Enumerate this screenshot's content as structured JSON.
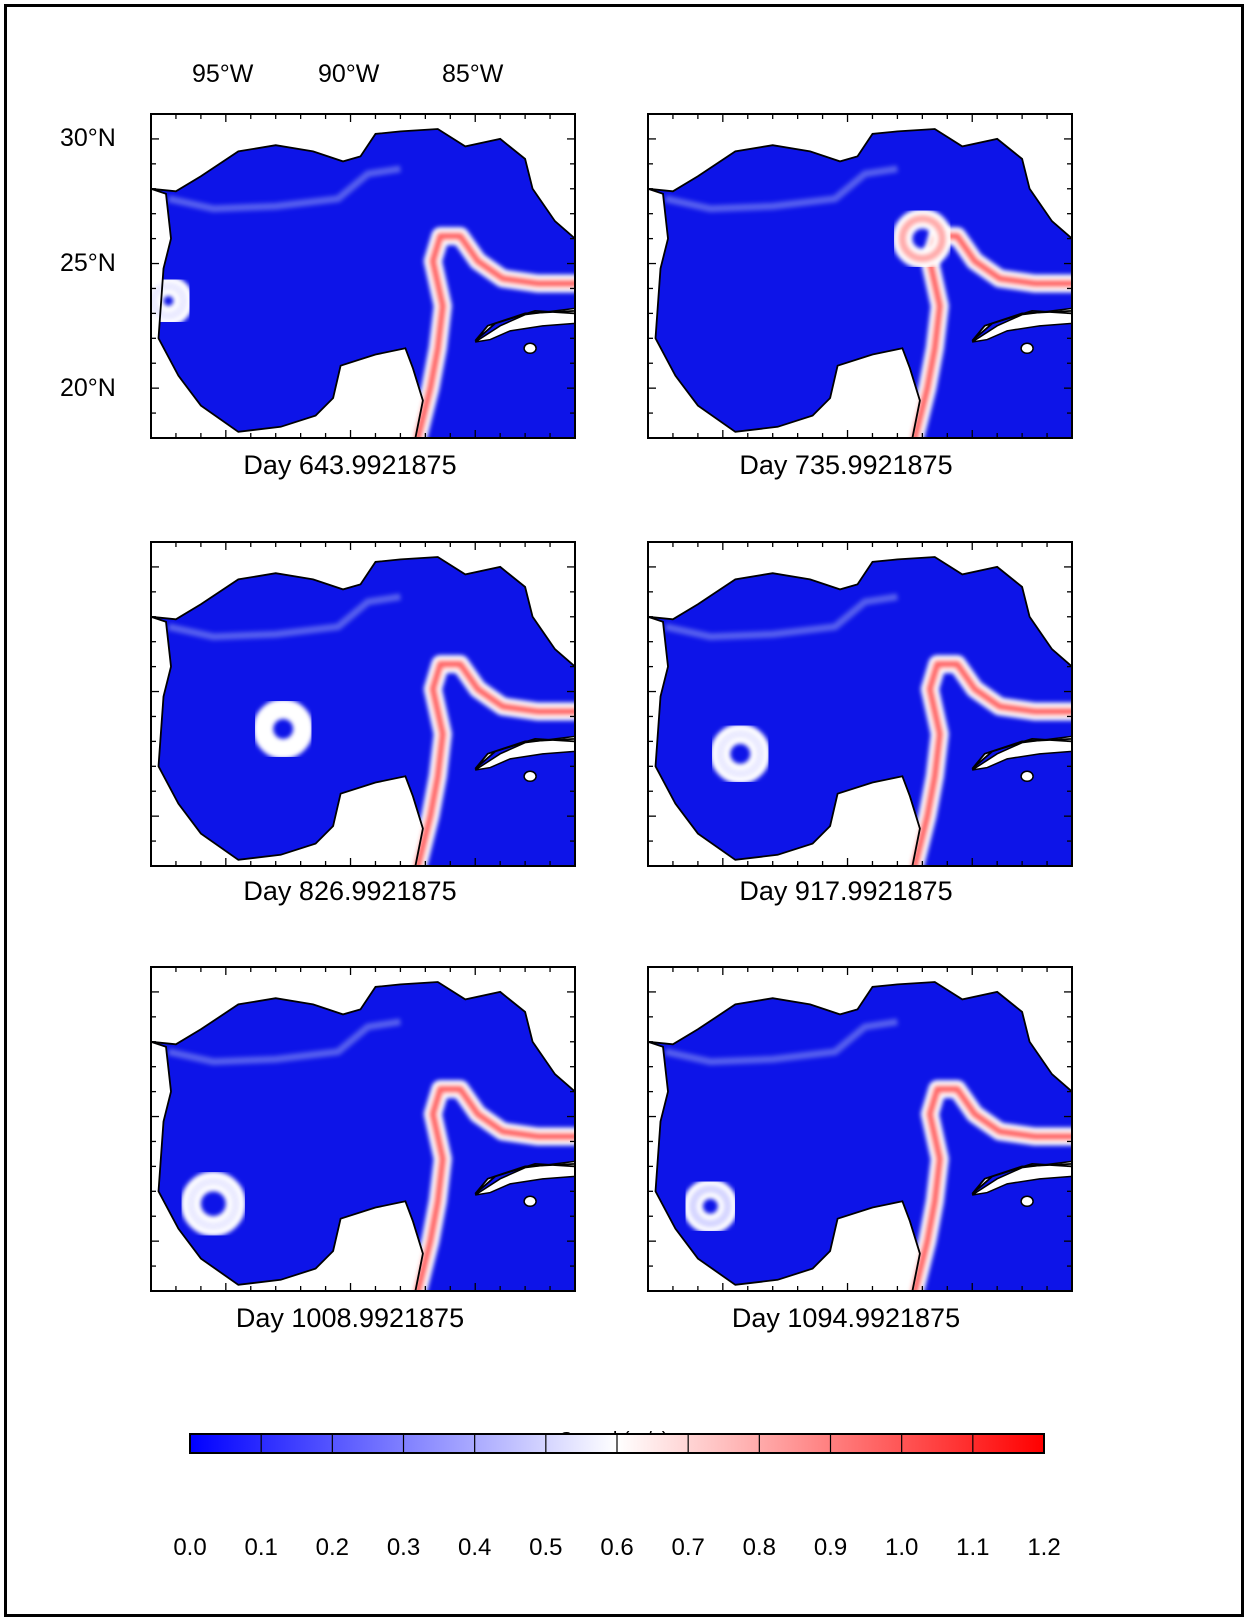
{
  "figure": {
    "lon_labels": [
      "95°W",
      "90°W",
      "85°W"
    ],
    "lat_labels": [
      "30°N",
      "25°N",
      "20°N"
    ]
  },
  "panels": [
    {
      "caption": "Day  643.9921875",
      "eddies": [
        {
          "lon": -97.3,
          "lat": 23.5,
          "r": 0.6,
          "speed": 0.55
        }
      ]
    },
    {
      "caption": "Day  735.9921875",
      "eddies": [
        {
          "lon": -87.0,
          "lat": 26.0,
          "r": 0.8,
          "speed": 0.8
        }
      ]
    },
    {
      "caption": "Day  826.9921875",
      "eddies": [
        {
          "lon": -92.7,
          "lat": 23.5,
          "r": 0.8,
          "speed": 0.6
        }
      ]
    },
    {
      "caption": "Day  917.9921875",
      "eddies": [
        {
          "lon": -94.3,
          "lat": 22.5,
          "r": 0.8,
          "speed": 0.55
        }
      ]
    },
    {
      "caption": "Day  1008.9921875",
      "eddies": [
        {
          "lon": -95.5,
          "lat": 21.5,
          "r": 0.9,
          "speed": 0.55
        }
      ]
    },
    {
      "caption": "Day  1094.9921875",
      "eddies": [
        {
          "lon": -95.5,
          "lat": 21.4,
          "r": 0.7,
          "speed": 0.5
        }
      ]
    }
  ],
  "colorbar": {
    "title": "Speed (m/s)",
    "ticks": [
      "0.0",
      "0.1",
      "0.2",
      "0.3",
      "0.4",
      "0.5",
      "0.6",
      "0.7",
      "0.8",
      "0.9",
      "1.0",
      "1.1",
      "1.2"
    ],
    "min": 0.0,
    "max": 1.2,
    "colors": {
      "low": "#0000ff",
      "mid": "#ffffff",
      "high": "#ff0000"
    }
  },
  "map_extent": {
    "lon_min": -98,
    "lon_max": -81,
    "lat_min": 18,
    "lat_max": 31
  }
}
